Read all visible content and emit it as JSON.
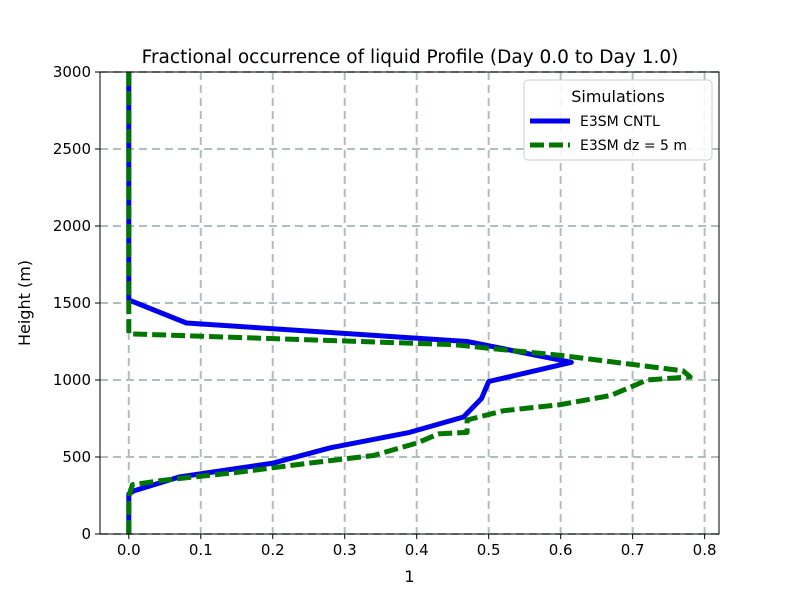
{
  "chart_data": {
    "type": "line",
    "title": "Fractional occurrence of liquid Profile (Day 0.0 to Day 1.0)",
    "xlabel": "1",
    "ylabel": "Height (m)",
    "xlim": [
      -0.04,
      0.82
    ],
    "ylim": [
      0,
      3000
    ],
    "xticks": [
      0.0,
      0.1,
      0.2,
      0.3,
      0.4,
      0.5,
      0.6,
      0.7,
      0.8
    ],
    "xtick_labels": [
      "0.0",
      "0.1",
      "0.2",
      "0.3",
      "0.4",
      "0.5",
      "0.6",
      "0.7",
      "0.8"
    ],
    "yticks": [
      0,
      500,
      1000,
      1500,
      2000,
      2500,
      3000
    ],
    "ytick_labels": [
      "0",
      "500",
      "1000",
      "1500",
      "2000",
      "2500",
      "3000"
    ],
    "grid": true,
    "legend": {
      "title": "Simulations",
      "position": "top-right"
    },
    "series": [
      {
        "name": "E3SM CNTL",
        "color": "#0000ee",
        "style": "solid",
        "x": [
          0.0,
          0.0,
          0.007,
          0.07,
          0.2,
          0.28,
          0.39,
          0.465,
          0.49,
          0.5,
          0.615,
          0.47,
          0.08,
          0.0,
          0.0,
          0.0
        ],
        "y": [
          0,
          260,
          280,
          370,
          460,
          560,
          660,
          760,
          880,
          990,
          1115,
          1250,
          1370,
          1520,
          1600,
          3000
        ]
      },
      {
        "name": "E3SM dz = 5 m",
        "color": "#007700",
        "style": "dashed",
        "x": [
          0.0,
          0.0,
          0.005,
          0.05,
          0.15,
          0.25,
          0.34,
          0.4,
          0.43,
          0.47,
          0.47,
          0.52,
          0.6,
          0.67,
          0.7,
          0.72,
          0.78,
          0.77,
          0.6,
          0.45,
          0.0,
          0.0,
          0.0,
          0.0
        ],
        "y": [
          0,
          240,
          320,
          350,
          400,
          460,
          510,
          590,
          650,
          660,
          740,
          800,
          840,
          900,
          960,
          1000,
          1020,
          1060,
          1160,
          1230,
          1300,
          1330,
          1380,
          3000
        ]
      }
    ]
  }
}
